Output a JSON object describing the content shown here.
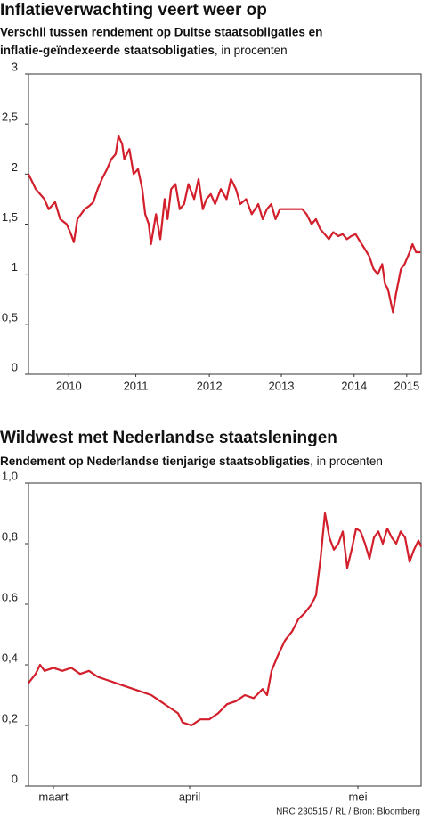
{
  "chart_data": [
    {
      "type": "line",
      "title": "Inflatieverwachting veert weer op",
      "subtitle_lines": [
        "Verschil tussen rendement op Duitse staatsobligaties en",
        "inflatie-geïndexeerde staatsobligaties"
      ],
      "subtitle_note": ", in procenten",
      "ylim": [
        0,
        3
      ],
      "yticks": [
        0,
        {
          "value": 0.5,
          "label": "0,5"
        },
        1,
        {
          "value": 1.5,
          "label": "1,5"
        },
        2,
        {
          "value": 2.5,
          "label": "2,5"
        },
        3
      ],
      "xlim": [
        2009.45,
        2014.9
      ],
      "xticks": [
        {
          "value": 2010.01,
          "label": "2010"
        },
        {
          "value": 2010.94,
          "label": "2011"
        },
        {
          "value": 2011.96,
          "label": "2012"
        },
        {
          "value": 2012.96,
          "label": "2013"
        },
        {
          "value": 2013.97,
          "label": "2014"
        },
        {
          "value": 2014.7,
          "label": "2015"
        }
      ],
      "x": [
        2009.45,
        2009.55,
        2009.67,
        2009.73,
        2009.82,
        2009.89,
        2009.98,
        2010.04,
        2010.08,
        2010.13,
        2010.23,
        2010.29,
        2010.35,
        2010.41,
        2010.47,
        2010.54,
        2010.6,
        2010.66,
        2010.7,
        2010.75,
        2010.78,
        2010.85,
        2010.91,
        2010.97,
        2011.03,
        2011.07,
        2011.12,
        2011.15,
        2011.22,
        2011.28,
        2011.34,
        2011.38,
        2011.43,
        2011.49,
        2011.55,
        2011.61,
        2011.67,
        2011.75,
        2011.81,
        2011.87,
        2011.92,
        2011.98,
        2012.04,
        2012.12,
        2012.2,
        2012.26,
        2012.33,
        2012.39,
        2012.47,
        2012.55,
        2012.64,
        2012.7,
        2012.76,
        2012.82,
        2012.88,
        2012.94,
        2013.01,
        2013.13,
        2013.25,
        2013.31,
        2013.38,
        2013.44,
        2013.5,
        2013.56,
        2013.62,
        2013.68,
        2013.75,
        2013.81,
        2013.87,
        2013.93,
        2013.99,
        2014.05,
        2014.12,
        2014.18,
        2014.24,
        2014.3,
        2014.36,
        2014.4,
        2014.44,
        2014.47,
        2014.51,
        2014.55,
        2014.62,
        2014.67,
        2014.73,
        2014.78,
        2014.83,
        2014.89
      ],
      "series": [
        {
          "color": "#d21f2b",
          "values": [
            2.0,
            1.85,
            1.75,
            1.65,
            1.72,
            1.55,
            1.5,
            1.4,
            1.32,
            1.55,
            1.65,
            1.68,
            1.72,
            1.85,
            1.95,
            2.05,
            2.15,
            2.2,
            2.38,
            2.3,
            2.15,
            2.25,
            2.0,
            2.05,
            1.85,
            1.6,
            1.5,
            1.3,
            1.6,
            1.35,
            1.75,
            1.55,
            1.85,
            1.9,
            1.65,
            1.7,
            1.9,
            1.75,
            1.95,
            1.65,
            1.75,
            1.8,
            1.7,
            1.85,
            1.75,
            1.95,
            1.85,
            1.7,
            1.75,
            1.6,
            1.7,
            1.55,
            1.65,
            1.7,
            1.55,
            1.65,
            1.65,
            1.65,
            1.65,
            1.6,
            1.5,
            1.55,
            1.45,
            1.4,
            1.35,
            1.42,
            1.38,
            1.4,
            1.35,
            1.38,
            1.4,
            1.33,
            1.25,
            1.18,
            1.05,
            1.0,
            1.1,
            0.9,
            0.85,
            0.75,
            0.62,
            0.8,
            1.05,
            1.1,
            1.2,
            1.3,
            1.22,
            1.22
          ]
        }
      ]
    },
    {
      "type": "line",
      "title": "Wildwest met Nederlandse staatsleningen",
      "subtitle_lines": [
        "Rendement op Nederlandse tienjarige staatsobligaties"
      ],
      "subtitle_note": ", in procenten",
      "ylim": [
        0,
        1
      ],
      "yticks": [
        0,
        {
          "value": 0.2,
          "label": "0,2"
        },
        {
          "value": 0.4,
          "label": "0,4"
        },
        {
          "value": 0.6,
          "label": "0,6"
        },
        {
          "value": 0.8,
          "label": "0,8"
        },
        {
          "value": 1,
          "label": "1,0"
        }
      ],
      "xlim": [
        0,
        88.2
      ],
      "xticks": [
        {
          "value": 5.6,
          "label": "maart"
        },
        {
          "value": 36.2,
          "label": "april"
        },
        {
          "value": 74,
          "label": "mei"
        }
      ],
      "x": [
        0,
        1.6,
        2.6,
        3.6,
        5.6,
        7.6,
        9.6,
        11.6,
        13.6,
        15.6,
        17.6,
        19.6,
        21.6,
        23.6,
        25.6,
        27.6,
        29.6,
        31.6,
        33.6,
        34.6,
        36.6,
        38.6,
        40.6,
        42.6,
        44.6,
        46.6,
        48.6,
        50.6,
        52.6,
        53.6,
        54.6,
        56,
        57.6,
        59.2,
        60.6,
        62,
        63.6,
        64.6,
        65.6,
        66.6,
        67.6,
        68.6,
        69.6,
        70.6,
        71.6,
        72.6,
        73.6,
        74.6,
        75.6,
        76.6,
        77.6,
        78.6,
        79.6,
        80.6,
        81.6,
        82.6,
        83.6,
        84.6,
        85.6,
        86.6,
        87.6,
        88.2
      ],
      "series": [
        {
          "color": "#d21f2b",
          "values": [
            0.34,
            0.37,
            0.4,
            0.38,
            0.39,
            0.38,
            0.39,
            0.37,
            0.38,
            0.36,
            0.35,
            0.34,
            0.33,
            0.32,
            0.31,
            0.3,
            0.28,
            0.26,
            0.24,
            0.21,
            0.2,
            0.22,
            0.22,
            0.24,
            0.27,
            0.28,
            0.3,
            0.29,
            0.32,
            0.3,
            0.38,
            0.43,
            0.48,
            0.51,
            0.55,
            0.57,
            0.6,
            0.63,
            0.75,
            0.9,
            0.82,
            0.78,
            0.8,
            0.84,
            0.72,
            0.78,
            0.85,
            0.84,
            0.8,
            0.75,
            0.82,
            0.84,
            0.8,
            0.85,
            0.82,
            0.8,
            0.84,
            0.82,
            0.74,
            0.78,
            0.81,
            0.79
          ]
        }
      ],
      "source": "NRC 230515 / RL / Bron: Bloomberg"
    }
  ]
}
